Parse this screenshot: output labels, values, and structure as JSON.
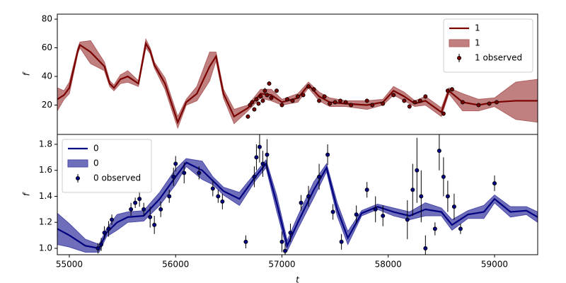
{
  "chart_data": [
    {
      "type": "line",
      "y_label": "f",
      "xlim": [
        54887,
        59406
      ],
      "ylim": [
        -0.5,
        83.5
      ],
      "yticks": [
        20,
        40,
        60,
        80
      ],
      "legend": "upper right",
      "series": [
        {
          "name": "1",
          "type": "line",
          "color": "#7a0000",
          "x": [
            54887,
            54950,
            55000,
            55080,
            55100,
            55200,
            55330,
            55380,
            55420,
            55480,
            55550,
            55650,
            55720,
            55760,
            55800,
            55900,
            56020,
            56100,
            56200,
            56320,
            56380,
            56450,
            56550,
            56680,
            56800,
            56900,
            57000,
            57150,
            57250,
            57350,
            57450,
            57600,
            57800,
            57950,
            58050,
            58150,
            58250,
            58350,
            58500,
            58570,
            58700,
            58850,
            59000,
            59200,
            59406
          ],
          "values": [
            24,
            27,
            32,
            58,
            62,
            57,
            47,
            35,
            32,
            38,
            40,
            35,
            63,
            58,
            48,
            35,
            8,
            22,
            28,
            47,
            54,
            28,
            12,
            18,
            28,
            27,
            22,
            25,
            34,
            26,
            22,
            21,
            20,
            22,
            30,
            26,
            21,
            23,
            15,
            30,
            22,
            20,
            22,
            23,
            23
          ]
        },
        {
          "name": "1",
          "type": "band",
          "color": "#b06060",
          "x": [
            54887,
            54950,
            55000,
            55080,
            55100,
            55200,
            55330,
            55380,
            55420,
            55480,
            55550,
            55650,
            55720,
            55760,
            55800,
            55900,
            56020,
            56100,
            56200,
            56320,
            56380,
            56450,
            56550,
            56680,
            56800,
            56900,
            57000,
            57150,
            57250,
            57350,
            57450,
            57600,
            57800,
            57950,
            58050,
            58150,
            58250,
            58350,
            58500,
            58570,
            58700,
            58850,
            59000,
            59200,
            59406
          ],
          "lower": [
            16,
            24,
            28,
            56,
            60,
            49,
            44,
            33,
            30,
            35,
            36,
            33,
            60,
            56,
            46,
            31,
            4,
            20,
            23,
            37,
            51,
            25,
            7,
            16,
            25,
            23,
            20,
            22,
            32,
            23,
            19,
            19,
            17,
            20,
            27,
            23,
            19,
            20,
            12,
            28,
            16,
            16,
            19,
            10,
            8
          ],
          "upper": [
            32,
            30,
            36,
            60,
            64,
            65,
            50,
            37,
            34,
            41,
            44,
            37,
            66,
            60,
            50,
            39,
            12,
            24,
            33,
            57,
            57,
            31,
            17,
            20,
            31,
            31,
            24,
            28,
            36,
            29,
            25,
            23,
            23,
            24,
            33,
            29,
            23,
            26,
            18,
            32,
            28,
            24,
            25,
            36,
            38
          ]
        },
        {
          "name": "1 observed",
          "type": "errorbar",
          "color": "#7a0000",
          "x": [
            56680,
            56700,
            56720,
            56740,
            56760,
            56780,
            56800,
            56820,
            56840,
            56860,
            56880,
            56900,
            56950,
            57000,
            57050,
            57100,
            57150,
            57200,
            57250,
            57300,
            57350,
            57400,
            57450,
            57500,
            57550,
            57600,
            57650,
            57800,
            57850,
            57950,
            58050,
            58150,
            58200,
            58250,
            58300,
            58350,
            58520,
            58560,
            58600,
            58700,
            58850,
            58950,
            59020
          ],
          "values": [
            12,
            20,
            22,
            17,
            24,
            21,
            26,
            23,
            30,
            27,
            35,
            25,
            30,
            20,
            24,
            23,
            26,
            27,
            33,
            31,
            23,
            26,
            21,
            22,
            23,
            22,
            20,
            23,
            20,
            21,
            27,
            23,
            19,
            22,
            23,
            26,
            14,
            30,
            31,
            22,
            20,
            21,
            22
          ],
          "errors": [
            1.5,
            1.5,
            1.5,
            1.5,
            1.5,
            1.5,
            1.5,
            1.5,
            2,
            1.5,
            1.5,
            1.5,
            1.5,
            1.5,
            1.5,
            1.5,
            1.5,
            1.5,
            1.5,
            1.5,
            1.5,
            1.5,
            1.5,
            1.5,
            1.5,
            1.5,
            1.5,
            1.5,
            1.5,
            1.5,
            1.5,
            1.5,
            1.5,
            1.5,
            1.5,
            1.5,
            1.5,
            1.5,
            1.5,
            1.5,
            1.5,
            1.5,
            1.5
          ]
        }
      ]
    },
    {
      "type": "line",
      "y_label": "f",
      "x_label": "t",
      "xlim": [
        54887,
        59406
      ],
      "ylim": [
        0.951,
        1.876
      ],
      "xticks": [
        55000,
        56000,
        57000,
        58000,
        59000
      ],
      "yticks": [
        {
          "value": 1,
          "label": "1.0"
        },
        1.2,
        1.4,
        1.6,
        1.8
      ],
      "legend": "upper left",
      "series": [
        {
          "name": "0",
          "type": "line",
          "color": "#000080",
          "x": [
            54887,
            55000,
            55150,
            55280,
            55350,
            55450,
            55550,
            55700,
            55850,
            56000,
            56100,
            56250,
            56350,
            56450,
            56600,
            56750,
            56850,
            56950,
            57050,
            57150,
            57300,
            57420,
            57520,
            57620,
            57750,
            57900,
            58050,
            58200,
            58350,
            58500,
            58600,
            58750,
            58900,
            59000,
            59150,
            59300,
            59406
          ],
          "values": [
            1.15,
            1.1,
            1.02,
            1.0,
            1.12,
            1.2,
            1.24,
            1.25,
            1.38,
            1.55,
            1.66,
            1.6,
            1.52,
            1.44,
            1.38,
            1.55,
            1.65,
            1.35,
            1.02,
            1.2,
            1.45,
            1.62,
            1.3,
            1.08,
            1.27,
            1.32,
            1.28,
            1.25,
            1.3,
            1.28,
            1.18,
            1.26,
            1.28,
            1.38,
            1.28,
            1.29,
            1.24
          ]
        },
        {
          "name": "0",
          "type": "band",
          "color": "#4a4aaa",
          "x": [
            54887,
            55000,
            55150,
            55280,
            55350,
            55450,
            55550,
            55700,
            55850,
            56000,
            56100,
            56250,
            56350,
            56450,
            56600,
            56750,
            56850,
            56950,
            57050,
            57150,
            57300,
            57420,
            57520,
            57620,
            57750,
            57900,
            58050,
            58200,
            58350,
            58500,
            58600,
            58750,
            58900,
            59000,
            59150,
            59300,
            59406
          ],
          "lower": [
            1.03,
            1.01,
            0.97,
            0.97,
            1.09,
            1.14,
            1.2,
            1.21,
            1.33,
            1.49,
            1.63,
            1.53,
            1.49,
            1.41,
            1.33,
            1.52,
            1.62,
            1.29,
            0.98,
            1.15,
            1.39,
            1.59,
            1.25,
            1.03,
            1.25,
            1.3,
            1.25,
            1.22,
            1.25,
            1.25,
            1.14,
            1.23,
            1.23,
            1.35,
            1.24,
            1.26,
            1.2
          ],
          "upper": [
            1.27,
            1.19,
            1.07,
            1.03,
            1.15,
            1.26,
            1.28,
            1.29,
            1.43,
            1.61,
            1.69,
            1.67,
            1.55,
            1.47,
            1.43,
            1.58,
            1.68,
            1.41,
            1.06,
            1.25,
            1.51,
            1.65,
            1.35,
            1.13,
            1.29,
            1.34,
            1.31,
            1.28,
            1.35,
            1.31,
            1.22,
            1.29,
            1.33,
            1.41,
            1.32,
            1.32,
            1.28
          ]
        },
        {
          "name": "0 observed",
          "type": "errorbar",
          "color": "#000080",
          "x": [
            55270,
            55300,
            55330,
            55370,
            55400,
            55580,
            55620,
            55660,
            55700,
            55760,
            55800,
            55860,
            55940,
            55980,
            56000,
            56080,
            56220,
            56350,
            56400,
            56440,
            56660,
            56740,
            56760,
            56790,
            56820,
            56860,
            57000,
            57030,
            57080,
            57180,
            57250,
            57350,
            57430,
            57480,
            57560,
            57700,
            57800,
            57880,
            57950,
            58180,
            58230,
            58270,
            58310,
            58350,
            58440,
            58480,
            58520,
            58560,
            58620,
            58680,
            59000
          ],
          "values": [
            1.0,
            1.03,
            1.12,
            1.15,
            1.22,
            1.3,
            1.35,
            1.38,
            1.3,
            1.24,
            1.18,
            1.3,
            1.4,
            1.55,
            1.65,
            1.58,
            1.58,
            1.46,
            1.4,
            1.36,
            1.05,
            1.55,
            1.7,
            1.78,
            1.65,
            1.72,
            1.05,
            0.98,
            1.12,
            1.35,
            1.4,
            1.55,
            1.72,
            1.28,
            1.05,
            1.26,
            1.45,
            1.3,
            1.25,
            1.22,
            1.45,
            1.6,
            1.4,
            1.0,
            1.15,
            1.75,
            1.55,
            1.4,
            1.32,
            1.15,
            1.5
          ],
          "errors": [
            0.04,
            0.05,
            0.05,
            0.06,
            0.04,
            0.05,
            0.04,
            0.06,
            0.05,
            0.08,
            0.07,
            0.06,
            0.05,
            0.07,
            0.06,
            0.08,
            0.05,
            0.06,
            0.05,
            0.06,
            0.05,
            0.08,
            0.1,
            0.12,
            0.1,
            0.12,
            0.08,
            0.06,
            0.07,
            0.06,
            0.08,
            0.1,
            0.08,
            0.06,
            0.06,
            0.07,
            0.06,
            0.1,
            0.08,
            0.15,
            0.2,
            0.25,
            0.2,
            0.1,
            0.05,
            0.15,
            0.15,
            0.12,
            0.1,
            0.04,
            0.06
          ]
        }
      ]
    }
  ]
}
